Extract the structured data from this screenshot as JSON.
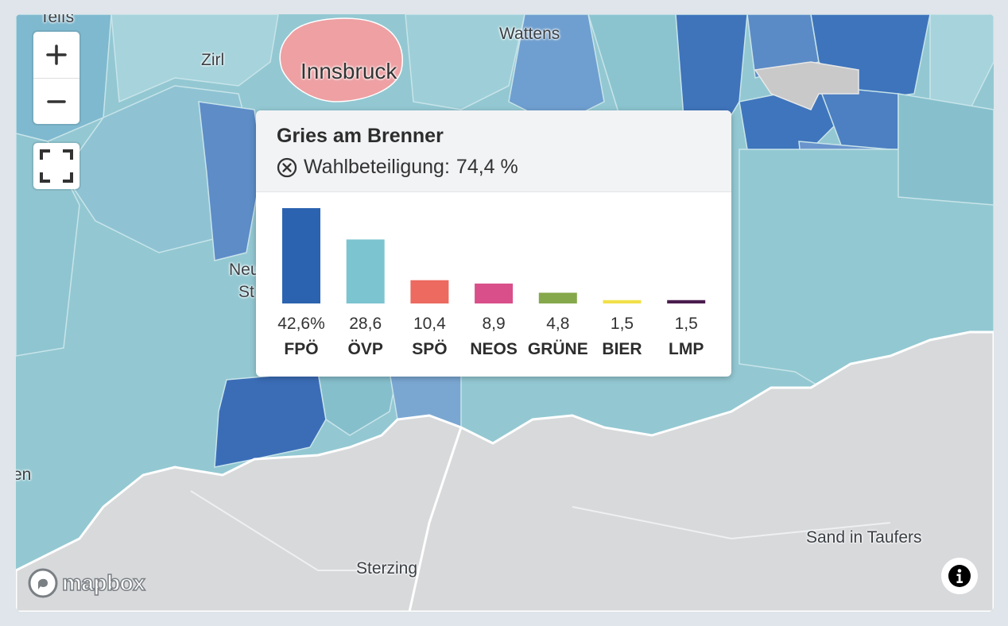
{
  "map": {
    "places": [
      {
        "name": "Telfs",
        "big": false
      },
      {
        "name": "Zirl",
        "big": false
      },
      {
        "name": "Innsbruck",
        "big": true
      },
      {
        "name": "Wattens",
        "big": false
      },
      {
        "name": "Neu",
        "big": false
      },
      {
        "name": "St",
        "big": false
      },
      {
        "name": "en",
        "big": false
      },
      {
        "name": "Sterzing",
        "big": false
      },
      {
        "name": "Sand in Taufers",
        "big": false
      }
    ],
    "attribution_logo": "mapbox",
    "controls": {
      "zoom_in": "+",
      "zoom_out": "−"
    }
  },
  "popup": {
    "municipality": "Gries am Brenner",
    "turnout_label": "Wahlbeteiligung:",
    "turnout_value": "74,4 %"
  },
  "chart_data": {
    "type": "bar",
    "categories": [
      "FPÖ",
      "ÖVP",
      "SPÖ",
      "NEOS",
      "GRÜNE",
      "BIER",
      "LMP"
    ],
    "values": [
      42.6,
      28.6,
      10.4,
      8.9,
      4.8,
      1.5,
      1.5
    ],
    "value_labels": [
      "42,6%",
      "28,6",
      "10,4",
      "8,9",
      "4,8",
      "1,5",
      "1,5"
    ],
    "colors": [
      "#2b63b0",
      "#7cc4d0",
      "#ec6a60",
      "#d94f8a",
      "#86a84c",
      "#f1e04a",
      "#4a1d4e"
    ],
    "ylim": [
      0,
      42.6
    ]
  }
}
